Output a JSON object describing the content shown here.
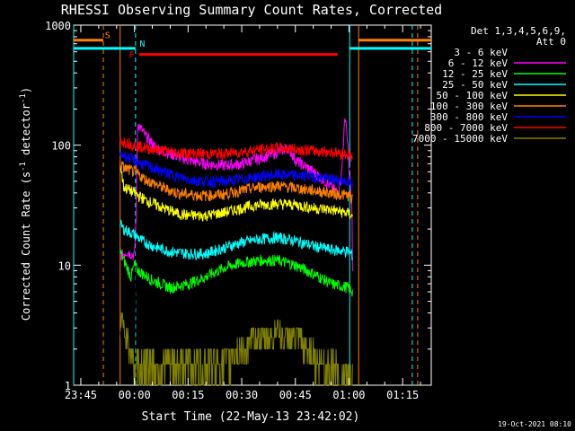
{
  "chart_data": {
    "type": "line",
    "title": "RHESSI Observing Summary Count Rates, Corrected",
    "xlabel": "Start Time (22-May-13 23:42:02)",
    "ylabel": "Corrected Count Rate (s^-1 detector^-1)",
    "ylabel_parts": {
      "main": "Corrected Count Rate (s",
      "sup1": "-1",
      "mid": " detector",
      "sup2": "-1",
      "end": ")"
    },
    "y_scale": "log",
    "ylim": [
      1,
      1000
    ],
    "xlim_minutes": [
      -17.0,
      83.0
    ],
    "x_ticks": [
      {
        "t": -15,
        "label": "23:45"
      },
      {
        "t": 0,
        "label": "00:00"
      },
      {
        "t": 15,
        "label": "00:15"
      },
      {
        "t": 30,
        "label": "00:30"
      },
      {
        "t": 45,
        "label": "00:45"
      },
      {
        "t": 60,
        "label": "01:00"
      },
      {
        "t": 75,
        "label": "01:15"
      }
    ],
    "y_ticks": [
      {
        "v": 1,
        "label": "1"
      },
      {
        "v": 10,
        "label": "10"
      },
      {
        "v": 100,
        "label": "100"
      },
      {
        "v": 1000,
        "label": "1000"
      }
    ],
    "legend": {
      "placement": "right",
      "header": [
        "Det 1,3,4,5,6,9,",
        "Att 0"
      ]
    },
    "annotations": [
      {
        "label": "S",
        "color": "#ff8000",
        "t_start": -17.0,
        "t_end": -8.7,
        "resume": 62.7,
        "level": 750,
        "text_t": -7.5
      },
      {
        "label": "N",
        "color": "#00ffff",
        "t_start": -17.0,
        "t_end": 0.3,
        "resume": 60.2,
        "level": 640,
        "text_t": 2.2
      },
      {
        "label": "F",
        "color": "#ff0000",
        "t_start": 1.3,
        "t_end": 56.8,
        "level": 570,
        "text_t": -0.8
      }
    ],
    "vlines": [
      {
        "t": -8.7,
        "color": "#ff8000",
        "style": "dashed"
      },
      {
        "t": 0.3,
        "color": "#00ffff",
        "style": "dashed"
      },
      {
        "t": 77.7,
        "color": "#00ffff",
        "style": "dashed"
      },
      {
        "t": 79.2,
        "color": "#ff8000",
        "style": "dashed"
      },
      {
        "t": -17.0,
        "color": "#00ffff",
        "style": "solid"
      },
      {
        "t": -4.0,
        "color": "#ff8000",
        "style": "solid"
      },
      {
        "t": 60.2,
        "color": "#00ffff",
        "style": "solid"
      },
      {
        "t": 62.7,
        "color": "#ff8000",
        "style": "solid"
      }
    ],
    "series": [
      {
        "name": "3 - 6 keV",
        "color": "#000000",
        "points": [
          [
            -4,
            2.8
          ],
          [
            -3,
            2.2
          ],
          [
            -2,
            2.3
          ],
          [
            -1,
            1.9
          ],
          [
            0,
            1.5
          ],
          [
            0.5,
            10
          ],
          [
            1,
            180
          ],
          [
            3,
            155
          ],
          [
            6,
            125
          ],
          [
            10,
            110
          ],
          [
            15,
            100
          ],
          [
            20,
            95
          ],
          [
            25,
            90
          ],
          [
            30,
            90
          ],
          [
            35,
            95
          ],
          [
            40,
            105
          ],
          [
            42,
            110
          ],
          [
            45,
            95
          ],
          [
            50,
            80
          ],
          [
            55,
            70
          ],
          [
            60,
            62
          ],
          [
            61,
            60
          ]
        ]
      },
      {
        "name": "6 - 12 keV",
        "color": "#ff00ff",
        "points": [
          [
            -4,
            12
          ],
          [
            -2,
            13
          ],
          [
            0,
            12
          ],
          [
            0.5,
            25
          ],
          [
            1,
            150
          ],
          [
            3,
            120
          ],
          [
            6,
            95
          ],
          [
            10,
            85
          ],
          [
            15,
            75
          ],
          [
            20,
            70
          ],
          [
            25,
            68
          ],
          [
            30,
            70
          ],
          [
            35,
            78
          ],
          [
            40,
            88
          ],
          [
            43,
            95
          ],
          [
            45,
            75
          ],
          [
            50,
            60
          ],
          [
            55,
            45
          ],
          [
            57,
            40
          ],
          [
            58,
            60
          ],
          [
            59,
            175
          ],
          [
            60,
            60
          ],
          [
            60.8,
            30
          ],
          [
            61,
            10
          ]
        ]
      },
      {
        "name": "12 - 25 keV",
        "color": "#00ff00",
        "points": [
          [
            -4,
            13
          ],
          [
            -3,
            11
          ],
          [
            -1,
            8
          ],
          [
            0,
            10
          ],
          [
            1,
            9
          ],
          [
            5,
            7.5
          ],
          [
            10,
            6.5
          ],
          [
            15,
            7.0
          ],
          [
            20,
            8
          ],
          [
            25,
            9.5
          ],
          [
            30,
            10.5
          ],
          [
            35,
            11
          ],
          [
            40,
            11
          ],
          [
            45,
            10
          ],
          [
            50,
            8.5
          ],
          [
            55,
            7
          ],
          [
            60,
            6.5
          ],
          [
            61,
            6
          ]
        ]
      },
      {
        "name": "25 - 50 keV",
        "color": "#00ffff",
        "points": [
          [
            -4,
            22
          ],
          [
            -3,
            20
          ],
          [
            0,
            18
          ],
          [
            2,
            16
          ],
          [
            5,
            14.5
          ],
          [
            10,
            13
          ],
          [
            15,
            12.5
          ],
          [
            20,
            12.5
          ],
          [
            25,
            14
          ],
          [
            30,
            15.5
          ],
          [
            35,
            16.5
          ],
          [
            40,
            17
          ],
          [
            45,
            16
          ],
          [
            50,
            14.5
          ],
          [
            55,
            13.5
          ],
          [
            60,
            13
          ],
          [
            61,
            12
          ]
        ]
      },
      {
        "name": "50 - 100 keV",
        "color": "#ffff00",
        "points": [
          [
            -4,
            68
          ],
          [
            -3,
            45
          ],
          [
            0,
            40
          ],
          [
            3,
            35
          ],
          [
            8,
            30
          ],
          [
            12,
            27
          ],
          [
            15,
            26
          ],
          [
            20,
            26
          ],
          [
            25,
            27.5
          ],
          [
            30,
            30
          ],
          [
            35,
            32
          ],
          [
            40,
            32.5
          ],
          [
            45,
            32
          ],
          [
            50,
            30
          ],
          [
            55,
            29
          ],
          [
            60,
            27
          ],
          [
            61,
            25
          ]
        ]
      },
      {
        "name": "100 - 300 keV",
        "color": "#ff8000",
        "points": [
          [
            -4,
            70
          ],
          [
            -3,
            65
          ],
          [
            0,
            60
          ],
          [
            3,
            52
          ],
          [
            8,
            44
          ],
          [
            12,
            40
          ],
          [
            15,
            39
          ],
          [
            20,
            38
          ],
          [
            25,
            39
          ],
          [
            30,
            42
          ],
          [
            35,
            45
          ],
          [
            40,
            46
          ],
          [
            45,
            44
          ],
          [
            50,
            42
          ],
          [
            55,
            40
          ],
          [
            60,
            38
          ],
          [
            61,
            35
          ]
        ]
      },
      {
        "name": "300 - 800 keV",
        "color": "#0000ff",
        "points": [
          [
            -4,
            85
          ],
          [
            -3,
            82
          ],
          [
            0,
            75
          ],
          [
            3,
            68
          ],
          [
            8,
            60
          ],
          [
            12,
            55
          ],
          [
            15,
            52
          ],
          [
            20,
            50
          ],
          [
            25,
            50
          ],
          [
            30,
            52
          ],
          [
            35,
            55
          ],
          [
            40,
            57
          ],
          [
            45,
            56
          ],
          [
            50,
            55
          ],
          [
            55,
            52
          ],
          [
            60,
            50
          ],
          [
            61,
            43
          ]
        ]
      },
      {
        "name": "800 - 7000 keV",
        "color": "#ff0000",
        "points": [
          [
            -4,
            110
          ],
          [
            -3,
            108
          ],
          [
            0,
            100
          ],
          [
            3,
            95
          ],
          [
            8,
            90
          ],
          [
            12,
            87
          ],
          [
            15,
            86
          ],
          [
            20,
            85
          ],
          [
            25,
            85
          ],
          [
            30,
            88
          ],
          [
            35,
            92
          ],
          [
            40,
            95
          ],
          [
            45,
            93
          ],
          [
            50,
            90
          ],
          [
            55,
            88
          ],
          [
            60,
            84
          ],
          [
            61,
            78
          ]
        ]
      },
      {
        "name": "7000 - 15000 keV",
        "color": "#808000",
        "points": [
          [
            -4,
            4.5
          ],
          [
            -3,
            3
          ],
          [
            -2,
            2.5
          ],
          [
            0,
            1.5
          ],
          [
            5,
            1.3
          ],
          [
            10,
            1.5
          ],
          [
            15,
            1.6
          ],
          [
            20,
            1.5
          ],
          [
            25,
            1.6
          ],
          [
            30,
            2.0
          ],
          [
            35,
            2.5
          ],
          [
            40,
            2.8
          ],
          [
            45,
            2.5
          ],
          [
            50,
            1.8
          ],
          [
            55,
            1.3
          ],
          [
            60,
            1.2
          ],
          [
            61,
            1.2
          ]
        ]
      }
    ]
  },
  "footer": {
    "timestamp": "19-Oct-2021 08:10"
  }
}
